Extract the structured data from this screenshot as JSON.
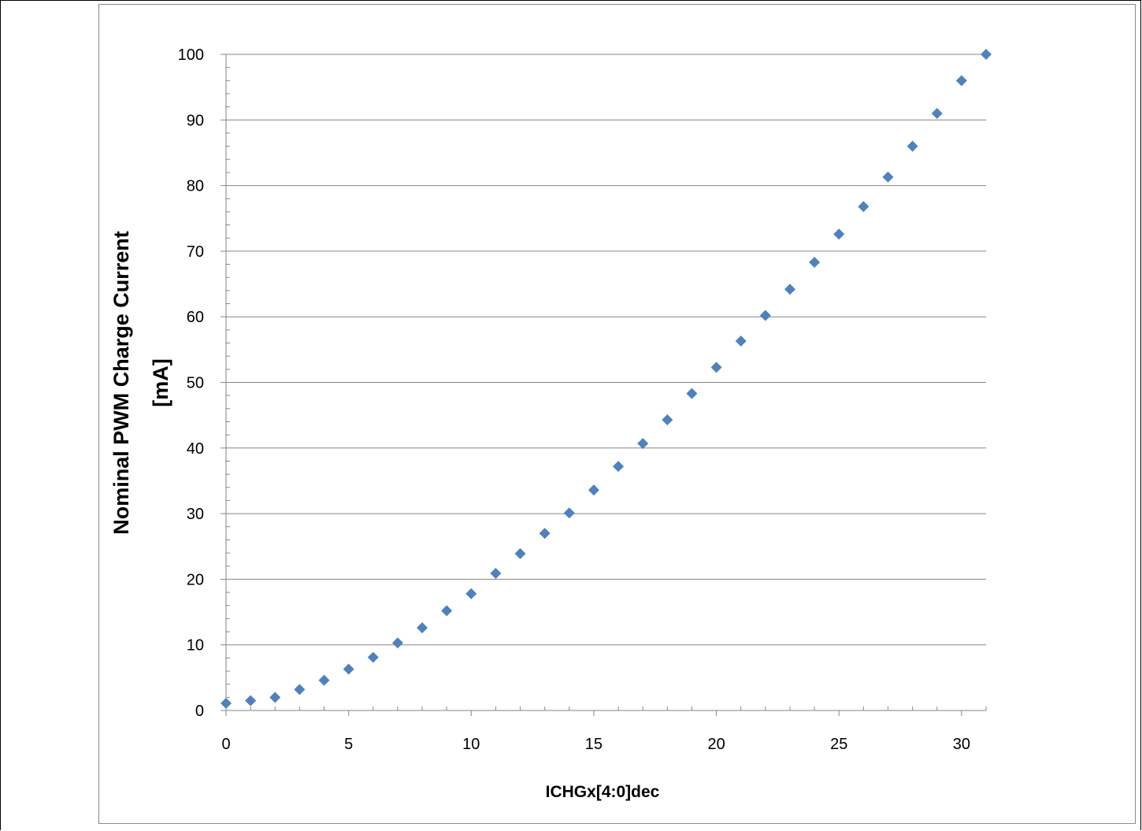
{
  "chart_data": {
    "type": "scatter",
    "title": "",
    "xlabel": "ICHGx[4:0]dec",
    "ylabel_lines": [
      "Nominal PWM Charge Current",
      "[mA]"
    ],
    "xlim": [
      0,
      31
    ],
    "ylim": [
      0,
      100
    ],
    "x_ticks": [
      0,
      5,
      10,
      15,
      20,
      25,
      30
    ],
    "y_ticks": [
      0,
      10,
      20,
      30,
      40,
      50,
      60,
      70,
      80,
      90,
      100
    ],
    "grid": "horizontal",
    "marker": "diamond",
    "color": "#4f81bd",
    "series": [
      {
        "x": [
          0,
          1,
          2,
          3,
          4,
          5,
          6,
          7,
          8,
          9,
          10,
          11,
          12,
          13,
          14,
          15,
          16,
          17,
          18,
          19,
          20,
          21,
          22,
          23,
          24,
          25,
          26,
          27,
          28,
          29,
          30,
          31
        ],
        "values": [
          1.1,
          1.5,
          2.0,
          3.2,
          4.6,
          6.3,
          8.1,
          10.3,
          12.6,
          15.2,
          17.8,
          20.9,
          23.9,
          27.0,
          30.1,
          33.6,
          37.2,
          40.7,
          44.3,
          48.3,
          52.3,
          56.3,
          60.2,
          64.2,
          68.3,
          72.6,
          76.8,
          81.3,
          86.0,
          91.0,
          96.0,
          100.0
        ]
      }
    ]
  }
}
